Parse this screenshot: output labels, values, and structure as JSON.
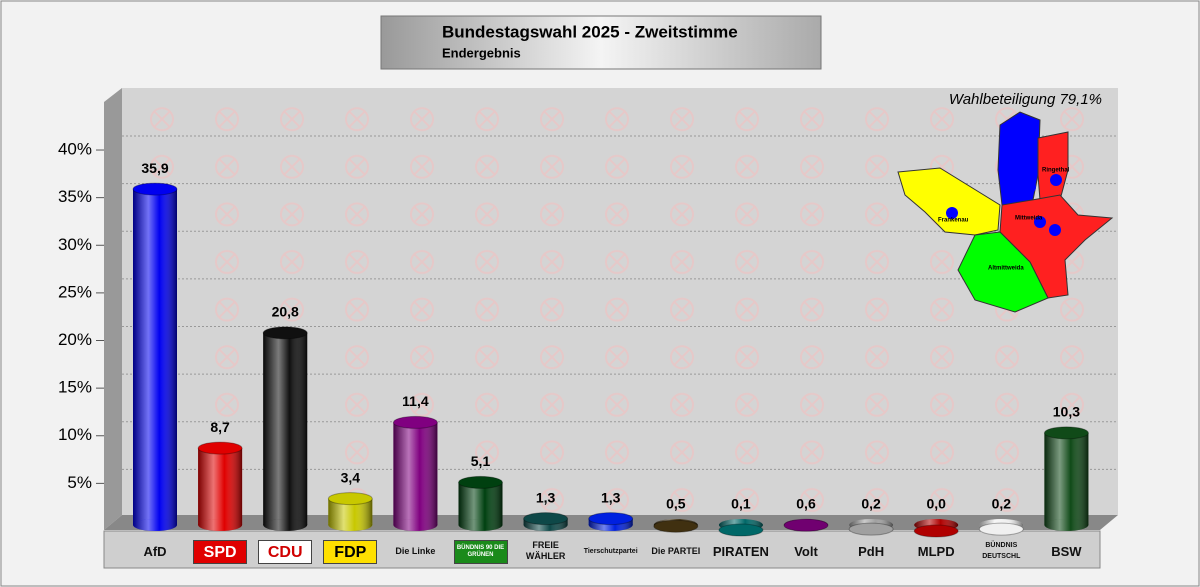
{
  "chart_data": {
    "type": "bar",
    "title": "Bundestagswahl 2025 - Zweitstimme",
    "subtitle": "Endergebnis",
    "annotation": "Wahlbeteiligung 79,1%",
    "map_labels": [
      "Frankenau",
      "Altmittweida",
      "Mittweida",
      "Ringethal"
    ],
    "categories": [
      "AfD",
      "SPD",
      "CDU",
      "FDP",
      "Die Linke",
      "BÜNDNIS 90 DIE GRÜNEN",
      "FREIE WÄHLER",
      "Tierschutzpartei",
      "Die PARTEI",
      "PIRATEN",
      "Volt",
      "PdH",
      "MLPD",
      "BÜNDNIS DEUTSCHL",
      "BSW"
    ],
    "values": [
      35.9,
      8.7,
      20.8,
      3.4,
      11.4,
      5.1,
      1.3,
      1.3,
      0.5,
      0.1,
      0.6,
      0.2,
      0.0,
      0.2,
      10.3
    ],
    "value_labels": [
      "35,9",
      "8,7",
      "20,8",
      "3,4",
      "11,4",
      "5,1",
      "1,3",
      "1,3",
      "0,5",
      "0,1",
      "0,6",
      "0,2",
      "0,0",
      "0,2",
      "10,3"
    ],
    "colors": [
      "#0000f0",
      "#e00000",
      "#101010",
      "#c8c800",
      "#800080",
      "#004010",
      "#0e4848",
      "#0020e0",
      "#403010",
      "#006868",
      "#700070",
      "#a0a0a0",
      "#b00000",
      "#f0f0f0",
      "#104a18"
    ],
    "ylim": [
      0,
      45
    ],
    "yticks": [
      {
        "value": 5,
        "label": "5%"
      },
      {
        "value": 10,
        "label": "10%"
      },
      {
        "value": 15,
        "label": "15%"
      },
      {
        "value": 20,
        "label": "20%"
      },
      {
        "value": 25,
        "label": "25%"
      },
      {
        "value": 30,
        "label": "30%"
      },
      {
        "value": 35,
        "label": "35%"
      },
      {
        "value": 40,
        "label": "40%"
      }
    ],
    "grid": true
  }
}
